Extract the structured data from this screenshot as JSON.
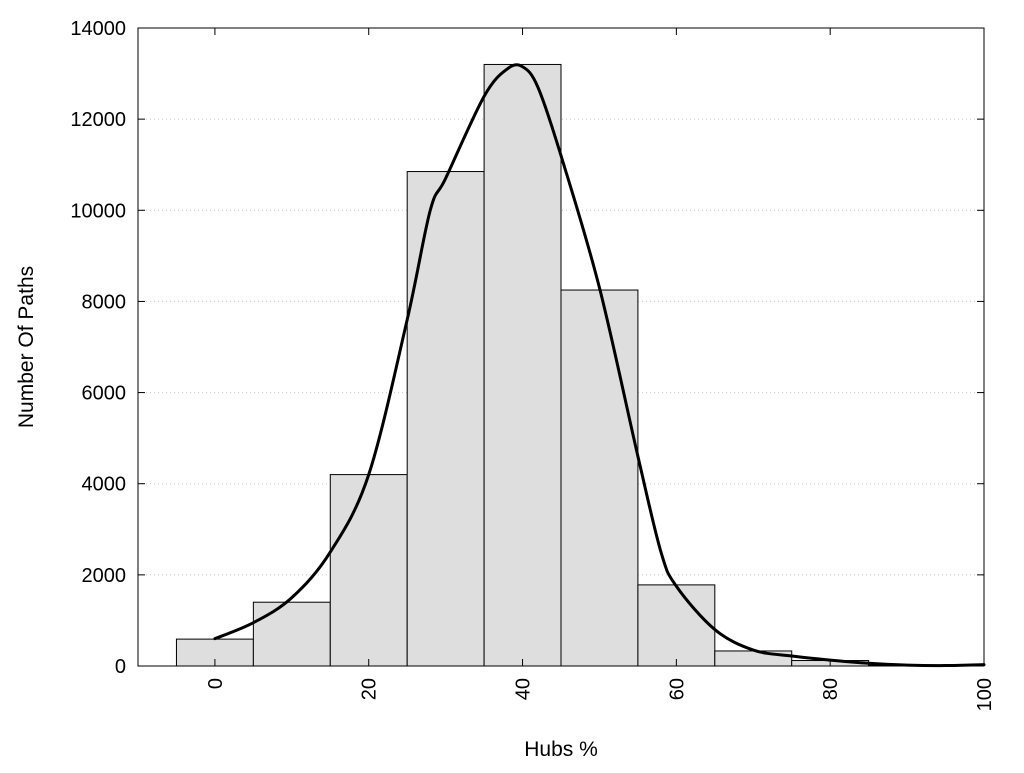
{
  "chart_data": {
    "type": "bar",
    "subtype": "histogram-with-density-curve",
    "title": "",
    "xlabel": "Hubs %",
    "ylabel": "Number Of Paths",
    "xlim": [
      -10,
      100
    ],
    "ylim": [
      0,
      14000
    ],
    "x_ticks": [
      0,
      20,
      40,
      60,
      80,
      100
    ],
    "y_ticks": [
      0,
      2000,
      4000,
      6000,
      8000,
      10000,
      12000,
      14000
    ],
    "x_tick_labels": [
      "0",
      "20",
      "40",
      "60",
      "80",
      "100"
    ],
    "y_tick_labels": [
      "0",
      "2000",
      "4000",
      "6000",
      "8000",
      "10000",
      "12000",
      "14000"
    ],
    "grid": {
      "y": true,
      "x": false,
      "style": "dotted"
    },
    "bins": [
      {
        "start": -5,
        "end": 5,
        "value": 590
      },
      {
        "start": 5,
        "end": 15,
        "value": 1400
      },
      {
        "start": 15,
        "end": 25,
        "value": 4200
      },
      {
        "start": 25,
        "end": 35,
        "value": 10850
      },
      {
        "start": 35,
        "end": 45,
        "value": 13200
      },
      {
        "start": 45,
        "end": 55,
        "value": 8250
      },
      {
        "start": 55,
        "end": 65,
        "value": 1780
      },
      {
        "start": 65,
        "end": 75,
        "value": 330
      },
      {
        "start": 75,
        "end": 85,
        "value": 120
      },
      {
        "start": 85,
        "end": 95,
        "value": 20
      },
      {
        "start": 95,
        "end": 105,
        "value": 10
      }
    ],
    "curve": {
      "x": [
        0,
        5,
        10,
        15,
        20,
        25,
        28,
        30,
        35,
        38,
        40,
        42,
        45,
        50,
        55,
        58,
        60,
        65,
        70,
        75,
        80,
        85,
        90,
        95,
        100
      ],
      "y": [
        600,
        950,
        1500,
        2500,
        4200,
        7600,
        10000,
        10700,
        12500,
        13100,
        13150,
        12700,
        11200,
        8300,
        4600,
        2500,
        1750,
        800,
        350,
        220,
        130,
        60,
        20,
        10,
        30
      ]
    },
    "colors": {
      "bar_fill": "#dedede",
      "bar_stroke": "#000000",
      "curve": "#000000",
      "grid": "#c8c8c8",
      "axis": "#000000"
    }
  }
}
